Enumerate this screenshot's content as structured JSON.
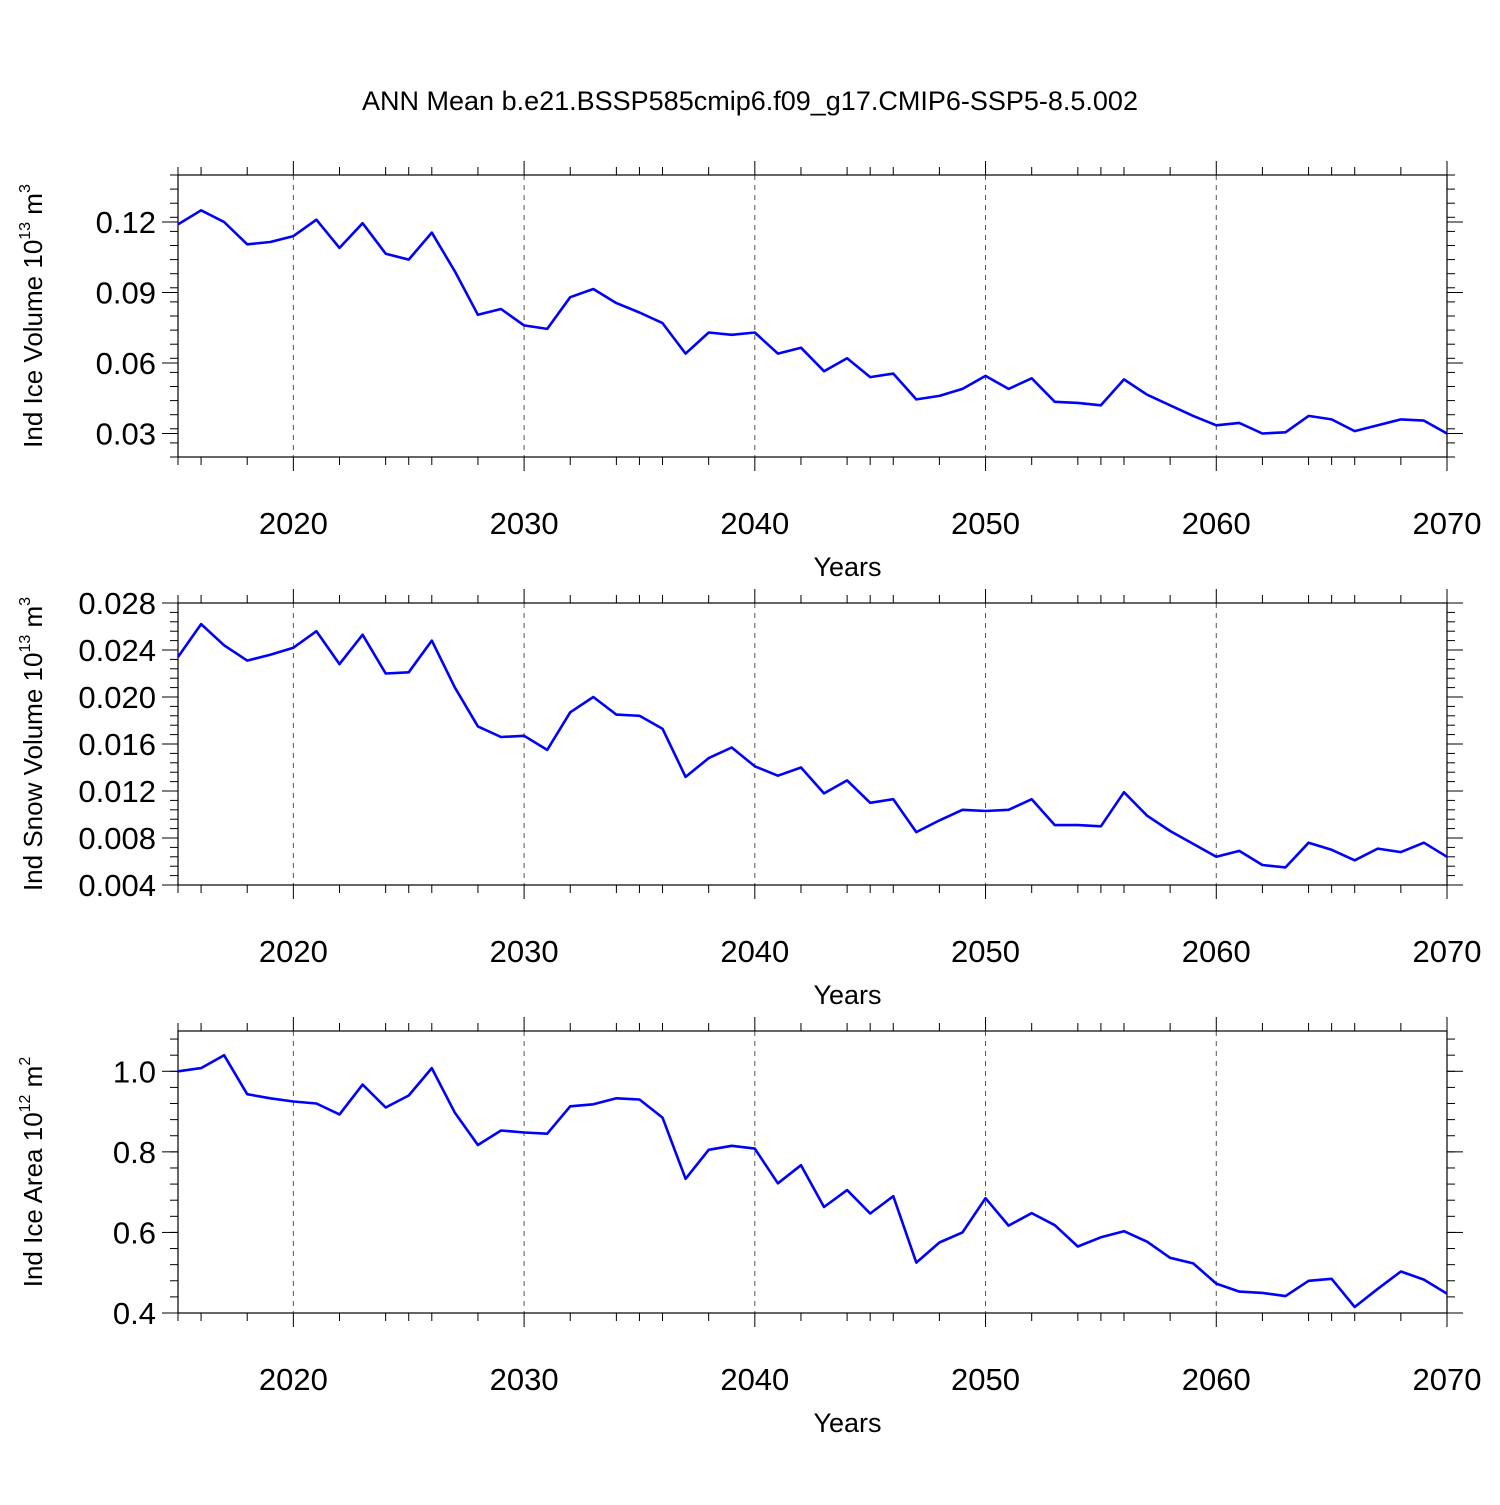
{
  "title": "ANN Mean b.e21.BSSP585cmip6.f09_g17.CMIP6-SSP5-8.5.002",
  "colors": {
    "line": "#0000ff",
    "axis": "#000000",
    "grid": "#555555"
  },
  "chart_data": [
    {
      "type": "line",
      "ylabel": "Ind Ice Volume 10",
      "ylabel_exp": "13",
      "ylabel_unit": " m",
      "ylabel_unit_exp": "3",
      "xlabel": "Years",
      "xlim": [
        2015,
        2070
      ],
      "ylim": [
        0.02,
        0.14
      ],
      "xticks": [
        "2020",
        "2030",
        "2040",
        "2050",
        "2060",
        "2070"
      ],
      "yticks": [
        "0.03",
        "0.06",
        "0.09",
        "0.12"
      ],
      "ytick_values": [
        0.03,
        0.06,
        0.09,
        0.12
      ],
      "grid_x": true,
      "series": [
        {
          "x": [
            2015,
            2016,
            2017,
            2018,
            2019,
            2020,
            2021,
            2022,
            2023,
            2024,
            2025,
            2026,
            2027,
            2028,
            2029,
            2030,
            2031,
            2032,
            2033,
            2034,
            2035,
            2036,
            2037,
            2038,
            2039,
            2040,
            2041,
            2042,
            2043,
            2044,
            2045,
            2046,
            2047,
            2048,
            2049,
            2050,
            2051,
            2052,
            2053,
            2054,
            2055,
            2056,
            2057,
            2058,
            2059,
            2060,
            2061,
            2062,
            2063,
            2064,
            2065,
            2066,
            2067,
            2068,
            2069,
            2070
          ],
          "y": [
            0.119,
            0.125,
            0.12,
            0.1105,
            0.1115,
            0.114,
            0.121,
            0.109,
            0.1195,
            0.1065,
            0.104,
            0.1155,
            0.099,
            0.0805,
            0.083,
            0.076,
            0.0745,
            0.088,
            0.0915,
            0.0855,
            0.0815,
            0.077,
            0.064,
            0.073,
            0.072,
            0.073,
            0.064,
            0.0665,
            0.0565,
            0.062,
            0.054,
            0.0555,
            0.0445,
            0.046,
            0.049,
            0.0545,
            0.049,
            0.0535,
            0.0435,
            0.043,
            0.042,
            0.053,
            0.0465,
            0.042,
            0.0375,
            0.0335,
            0.0345,
            0.03,
            0.0305,
            0.0375,
            0.036,
            0.031,
            0.0335,
            0.036,
            0.0355,
            0.03
          ]
        }
      ]
    },
    {
      "type": "line",
      "ylabel": "Ind Snow Volume 10",
      "ylabel_exp": "13",
      "ylabel_unit": " m",
      "ylabel_unit_exp": "3",
      "xlabel": "Years",
      "xlim": [
        2015,
        2070
      ],
      "ylim": [
        0.004,
        0.028
      ],
      "xticks": [
        "2020",
        "2030",
        "2040",
        "2050",
        "2060",
        "2070"
      ],
      "yticks": [
        "0.004",
        "0.008",
        "0.012",
        "0.016",
        "0.020",
        "0.024",
        "0.028"
      ],
      "ytick_values": [
        0.004,
        0.008,
        0.012,
        0.016,
        0.02,
        0.024,
        0.028
      ],
      "grid_x": true,
      "series": [
        {
          "x": [
            2015,
            2016,
            2017,
            2018,
            2019,
            2020,
            2021,
            2022,
            2023,
            2024,
            2025,
            2026,
            2027,
            2028,
            2029,
            2030,
            2031,
            2032,
            2033,
            2034,
            2035,
            2036,
            2037,
            2038,
            2039,
            2040,
            2041,
            2042,
            2043,
            2044,
            2045,
            2046,
            2047,
            2048,
            2049,
            2050,
            2051,
            2052,
            2053,
            2054,
            2055,
            2056,
            2057,
            2058,
            2059,
            2060,
            2061,
            2062,
            2063,
            2064,
            2065,
            2066,
            2067,
            2068,
            2069,
            2070
          ],
          "y": [
            0.0234,
            0.0262,
            0.0244,
            0.0231,
            0.0236,
            0.0242,
            0.0256,
            0.0228,
            0.0253,
            0.022,
            0.0221,
            0.0248,
            0.0208,
            0.0175,
            0.0166,
            0.0167,
            0.0155,
            0.0187,
            0.02,
            0.0185,
            0.0184,
            0.0173,
            0.0132,
            0.0148,
            0.0157,
            0.0141,
            0.0133,
            0.014,
            0.0118,
            0.0129,
            0.011,
            0.0113,
            0.0085,
            0.0095,
            0.0104,
            0.0103,
            0.0104,
            0.0113,
            0.0091,
            0.0091,
            0.009,
            0.0119,
            0.0099,
            0.0086,
            0.0075,
            0.0064,
            0.0069,
            0.0057,
            0.0055,
            0.0076,
            0.007,
            0.0061,
            0.0071,
            0.0068,
            0.0076,
            0.0064
          ]
        }
      ]
    },
    {
      "type": "line",
      "ylabel": "Ind Ice Area 10",
      "ylabel_exp": "12",
      "ylabel_unit": " m",
      "ylabel_unit_exp": "2",
      "xlabel": "Years",
      "xlim": [
        2015,
        2070
      ],
      "ylim": [
        0.4,
        1.1
      ],
      "xticks": [
        "2020",
        "2030",
        "2040",
        "2050",
        "2060",
        "2070"
      ],
      "yticks": [
        "0.4",
        "0.6",
        "0.8",
        "1.0"
      ],
      "ytick_values": [
        0.4,
        0.6,
        0.8,
        1.0
      ],
      "grid_x": true,
      "series": [
        {
          "x": [
            2015,
            2016,
            2017,
            2018,
            2019,
            2020,
            2021,
            2022,
            2023,
            2024,
            2025,
            2026,
            2027,
            2028,
            2029,
            2030,
            2031,
            2032,
            2033,
            2034,
            2035,
            2036,
            2037,
            2038,
            2039,
            2040,
            2041,
            2042,
            2043,
            2044,
            2045,
            2046,
            2047,
            2048,
            2049,
            2050,
            2051,
            2052,
            2053,
            2054,
            2055,
            2056,
            2057,
            2058,
            2059,
            2060,
            2061,
            2062,
            2063,
            2064,
            2065,
            2066,
            2067,
            2068,
            2069,
            2070
          ],
          "y": [
            1.0,
            1.008,
            1.04,
            0.943,
            0.933,
            0.925,
            0.92,
            0.893,
            0.967,
            0.91,
            0.94,
            1.008,
            0.897,
            0.817,
            0.853,
            0.848,
            0.845,
            0.913,
            0.918,
            0.933,
            0.93,
            0.885,
            0.733,
            0.805,
            0.815,
            0.808,
            0.722,
            0.767,
            0.663,
            0.705,
            0.647,
            0.69,
            0.525,
            0.575,
            0.6,
            0.685,
            0.617,
            0.648,
            0.618,
            0.565,
            0.588,
            0.603,
            0.577,
            0.537,
            0.523,
            0.473,
            0.453,
            0.45,
            0.442,
            0.48,
            0.485,
            0.415,
            0.46,
            0.503,
            0.483,
            0.448
          ]
        }
      ]
    }
  ]
}
